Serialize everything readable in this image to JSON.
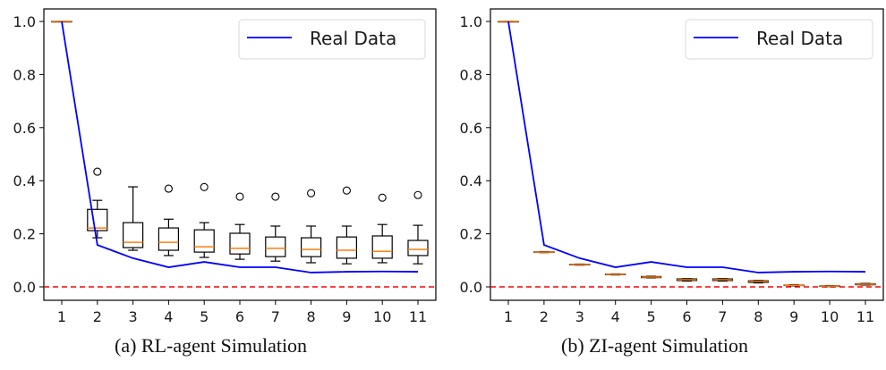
{
  "chart_data": [
    {
      "type": "box",
      "caption": "(a) RL-agent Simulation",
      "categories": [
        "1",
        "2",
        "3",
        "4",
        "5",
        "6",
        "7",
        "8",
        "9",
        "10",
        "11"
      ],
      "ylim": [
        -0.05,
        1.05
      ],
      "yticks": [
        "0.0",
        "0.2",
        "0.4",
        "0.6",
        "0.8",
        "1.0"
      ],
      "ytick_values": [
        0.0,
        0.2,
        0.4,
        0.6,
        0.8,
        1.0
      ],
      "legend": {
        "label": "Real Data",
        "position": "top-right"
      },
      "reference_line": {
        "y": 0.0,
        "style": "dashed",
        "color": "#ff0000"
      },
      "boxes": [
        {
          "x": 1,
          "whislo": 1.0,
          "q1": 1.0,
          "med": 1.0,
          "q3": 1.0,
          "whishi": 1.0,
          "fliers": []
        },
        {
          "x": 2,
          "whislo": 0.185,
          "q1": 0.212,
          "med": 0.222,
          "q3": 0.292,
          "whishi": 0.326,
          "fliers": [
            0.434
          ]
        },
        {
          "x": 3,
          "whislo": 0.138,
          "q1": 0.148,
          "med": 0.168,
          "q3": 0.242,
          "whishi": 0.377,
          "fliers": []
        },
        {
          "x": 4,
          "whislo": 0.118,
          "q1": 0.138,
          "med": 0.168,
          "q3": 0.222,
          "whishi": 0.255,
          "fliers": [
            0.37
          ]
        },
        {
          "x": 5,
          "whislo": 0.111,
          "q1": 0.131,
          "med": 0.151,
          "q3": 0.215,
          "whishi": 0.242,
          "fliers": [
            0.376
          ]
        },
        {
          "x": 6,
          "whislo": 0.104,
          "q1": 0.124,
          "med": 0.145,
          "q3": 0.202,
          "whishi": 0.235,
          "fliers": [
            0.34
          ]
        },
        {
          "x": 7,
          "whislo": 0.097,
          "q1": 0.114,
          "med": 0.145,
          "q3": 0.188,
          "whishi": 0.229,
          "fliers": [
            0.34
          ]
        },
        {
          "x": 8,
          "whislo": 0.091,
          "q1": 0.114,
          "med": 0.141,
          "q3": 0.185,
          "whishi": 0.229,
          "fliers": [
            0.353
          ]
        },
        {
          "x": 9,
          "whislo": 0.087,
          "q1": 0.108,
          "med": 0.138,
          "q3": 0.188,
          "whishi": 0.229,
          "fliers": [
            0.363
          ]
        },
        {
          "x": 10,
          "whislo": 0.091,
          "q1": 0.108,
          "med": 0.134,
          "q3": 0.192,
          "whishi": 0.235,
          "fliers": [
            0.336
          ]
        },
        {
          "x": 11,
          "whislo": 0.087,
          "q1": 0.118,
          "med": 0.141,
          "q3": 0.175,
          "whishi": 0.232,
          "fliers": [
            0.346
          ]
        }
      ],
      "series": [
        {
          "name": "Real Data",
          "type": "line",
          "color": "#0000ff",
          "x": [
            1,
            2,
            3,
            4,
            5,
            6,
            7,
            8,
            9,
            10,
            11
          ],
          "values": [
            1.0,
            0.158,
            0.108,
            0.074,
            0.094,
            0.074,
            0.074,
            0.054,
            0.057,
            0.058,
            0.057
          ]
        }
      ]
    },
    {
      "type": "box",
      "caption": "(b) ZI-agent Simulation",
      "categories": [
        "1",
        "2",
        "3",
        "4",
        "5",
        "6",
        "7",
        "8",
        "9",
        "10",
        "11"
      ],
      "ylim": [
        -0.05,
        1.05
      ],
      "yticks": [
        "0.0",
        "0.2",
        "0.4",
        "0.6",
        "0.8",
        "1.0"
      ],
      "ytick_values": [
        0.0,
        0.2,
        0.4,
        0.6,
        0.8,
        1.0
      ],
      "legend": {
        "label": "Real Data",
        "position": "top-right"
      },
      "reference_line": {
        "y": 0.0,
        "style": "dashed",
        "color": "#ff0000"
      },
      "boxes": [
        {
          "x": 1,
          "whislo": 1.0,
          "q1": 1.0,
          "med": 1.0,
          "q3": 1.0,
          "whishi": 1.0,
          "fliers": []
        },
        {
          "x": 2,
          "whislo": 0.129,
          "q1": 0.13,
          "med": 0.131,
          "q3": 0.132,
          "whishi": 0.133,
          "fliers": []
        },
        {
          "x": 3,
          "whislo": 0.082,
          "q1": 0.083,
          "med": 0.084,
          "q3": 0.085,
          "whishi": 0.086,
          "fliers": []
        },
        {
          "x": 4,
          "whislo": 0.045,
          "q1": 0.046,
          "med": 0.047,
          "q3": 0.048,
          "whishi": 0.049,
          "fliers": []
        },
        {
          "x": 5,
          "whislo": 0.034,
          "q1": 0.035,
          "med": 0.037,
          "q3": 0.039,
          "whishi": 0.04,
          "fliers": []
        },
        {
          "x": 6,
          "whislo": 0.022,
          "q1": 0.024,
          "med": 0.027,
          "q3": 0.03,
          "whishi": 0.031,
          "fliers": []
        },
        {
          "x": 7,
          "whislo": 0.022,
          "q1": 0.024,
          "med": 0.027,
          "q3": 0.03,
          "whishi": 0.031,
          "fliers": []
        },
        {
          "x": 8,
          "whislo": 0.015,
          "q1": 0.017,
          "med": 0.02,
          "q3": 0.023,
          "whishi": 0.024,
          "fliers": []
        },
        {
          "x": 9,
          "whislo": 0.004,
          "q1": 0.005,
          "med": 0.006,
          "q3": 0.007,
          "whishi": 0.008,
          "fliers": []
        },
        {
          "x": 10,
          "whislo": 0.001,
          "q1": 0.002,
          "med": 0.003,
          "q3": 0.004,
          "whishi": 0.005,
          "fliers": []
        },
        {
          "x": 11,
          "whislo": 0.007,
          "q1": 0.008,
          "med": 0.01,
          "q3": 0.012,
          "whishi": 0.013,
          "fliers": []
        }
      ],
      "series": [
        {
          "name": "Real Data",
          "type": "line",
          "color": "#0000ff",
          "x": [
            1,
            2,
            3,
            4,
            5,
            6,
            7,
            8,
            9,
            10,
            11
          ],
          "values": [
            1.0,
            0.158,
            0.108,
            0.074,
            0.094,
            0.074,
            0.074,
            0.054,
            0.057,
            0.058,
            0.057
          ]
        }
      ]
    }
  ],
  "colors": {
    "real_data_line": "#0000ff",
    "median": "#ff7f0e",
    "reference": "#ff0000",
    "box": "#000000"
  }
}
